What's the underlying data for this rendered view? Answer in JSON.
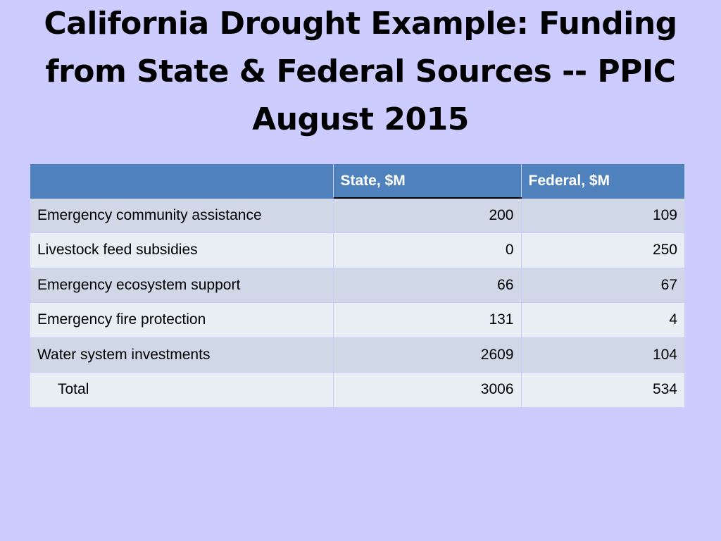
{
  "slide": {
    "title_lines": [
      "California Drought Example: Funding",
      "from State & Federal Sources --  PPIC",
      "August 2015"
    ]
  },
  "table": {
    "headers": [
      "",
      "State, $M",
      "Federal, $M"
    ],
    "rows": [
      {
        "label": "Emergency community assistance",
        "state": "200",
        "federal": "109"
      },
      {
        "label": "Livestock feed subsidies",
        "state": "0",
        "federal": "250"
      },
      {
        "label": "Emergency ecosystem support",
        "state": "66",
        "federal": "67"
      },
      {
        "label": "Emergency fire protection",
        "state": "131",
        "federal": "4"
      },
      {
        "label": "Water system investments",
        "state": "2609",
        "federal": "104"
      },
      {
        "label": "Total",
        "state": "3006",
        "federal": "534"
      }
    ]
  },
  "colors": {
    "background": "#ccccff",
    "header": "#4f81bd",
    "row_odd": "#d0d8e8",
    "row_even": "#e9edf4"
  }
}
